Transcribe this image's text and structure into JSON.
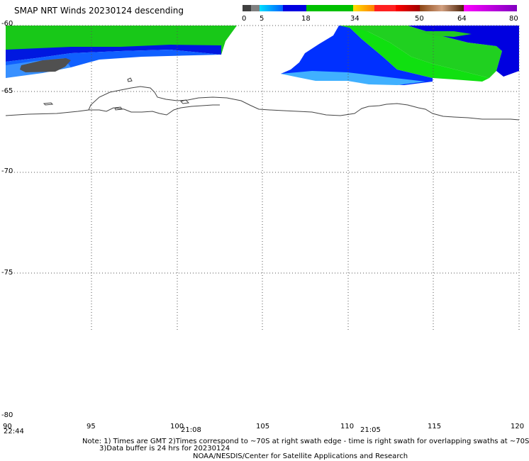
{
  "title": "SMAP NRT Winds  20230124 descending",
  "colorbar": {
    "labels": [
      "0",
      "5",
      "18",
      "34",
      "50",
      "64",
      "80"
    ],
    "segments": [
      {
        "color": "#404040"
      },
      {
        "color": "#808080"
      },
      {
        "color": "#00a0ff"
      },
      {
        "color": "#0000e0"
      },
      {
        "color": "#00c000"
      },
      {
        "color": "#ffe000"
      },
      {
        "color": "#ff8000"
      },
      {
        "color": "#ff0000"
      },
      {
        "color": "#8b4513"
      },
      {
        "color": "#c080ff"
      },
      {
        "color": "#ff00ff"
      },
      {
        "color": "#8000c0"
      }
    ]
  },
  "lat_labels": [
    "-60",
    "-65",
    "-70",
    "-75",
    "-80"
  ],
  "lon_labels": [
    "90",
    "95",
    "100",
    "105",
    "110",
    "115",
    "120"
  ],
  "times": [
    "22:44",
    "21:08",
    "21:05"
  ],
  "note": {
    "line1": "Note: 1) Times are GMT 2)Times correspond to ~70S at right swath edge - time is right swath for overlapping swaths at ~70S",
    "line2": "3)Data buffer is 24 hrs for 20230124",
    "line3": "NOAA/NESDIS/Center for Satellite Applications and Research"
  }
}
